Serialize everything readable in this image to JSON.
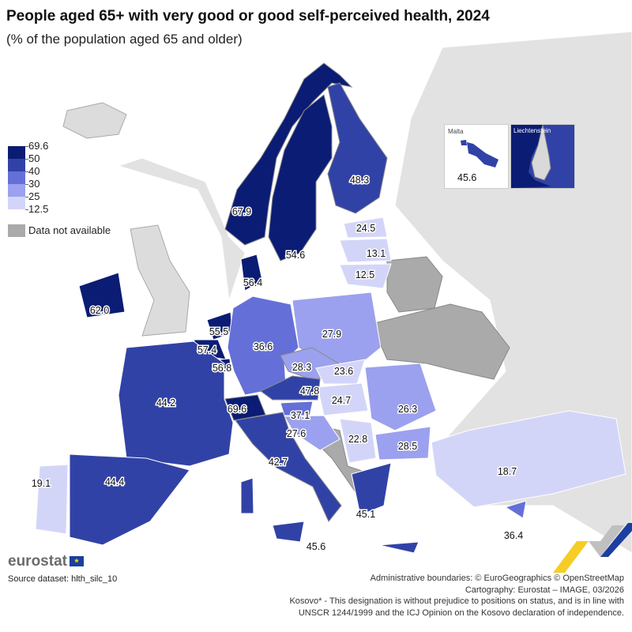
{
  "title": "People aged 65+ with very good or good self-perceived health, 2024",
  "subtitle": "(% of the population aged 65 and older)",
  "legend": {
    "breaks": [
      "69.6",
      "50",
      "40",
      "30",
      "25",
      "12.5"
    ],
    "colors": [
      "#0b1c74",
      "#3142a6",
      "#6470d8",
      "#9ba1ee",
      "#d3d5f8"
    ],
    "na_label": "Data not available",
    "na_color": "#aaaaaa"
  },
  "countries": [
    {
      "name": "Norway",
      "value": "67.9"
    },
    {
      "name": "Sweden",
      "value": "54.6"
    },
    {
      "name": "Finland",
      "value": "48.3"
    },
    {
      "name": "Estonia",
      "value": "24.5"
    },
    {
      "name": "Latvia",
      "value": "13.1"
    },
    {
      "name": "Lithuania",
      "value": "12.5"
    },
    {
      "name": "Denmark",
      "value": "56.4"
    },
    {
      "name": "Ireland",
      "value": "62.0"
    },
    {
      "name": "Netherlands",
      "value": "55.5"
    },
    {
      "name": "Belgium",
      "value": "57.4"
    },
    {
      "name": "Luxembourg",
      "value": "56.8"
    },
    {
      "name": "Germany",
      "value": "36.6"
    },
    {
      "name": "Poland",
      "value": "27.9"
    },
    {
      "name": "Czechia",
      "value": "28.3"
    },
    {
      "name": "Slovakia",
      "value": "23.6"
    },
    {
      "name": "Austria",
      "value": "47.8"
    },
    {
      "name": "Hungary",
      "value": "24.7"
    },
    {
      "name": "Romania",
      "value": "26.3"
    },
    {
      "name": "Bulgaria",
      "value": "28.5"
    },
    {
      "name": "Slovenia",
      "value": "37.1"
    },
    {
      "name": "Croatia",
      "value": "27.6"
    },
    {
      "name": "Serbia",
      "value": "22.8"
    },
    {
      "name": "Switzerland",
      "value": "69.6"
    },
    {
      "name": "France",
      "value": "44.2"
    },
    {
      "name": "Spain",
      "value": "44.4"
    },
    {
      "name": "Portugal",
      "value": "19.1"
    },
    {
      "name": "Italy",
      "value": "42.7"
    },
    {
      "name": "Greece",
      "value": "45.1"
    },
    {
      "name": "Cyprus",
      "value": "36.4"
    },
    {
      "name": "Turkey",
      "value": "18.7"
    },
    {
      "name": "Malta",
      "value": "45.6"
    }
  ],
  "insets": {
    "malta_label": "Malta",
    "malta_value": "45.6",
    "liechtenstein_label": "Liechtenstein"
  },
  "footer": {
    "logo": "eurostat",
    "source": "Source dataset: hlth_silc_10",
    "credits": [
      "Administrative boundaries: © EuroGeographics © OpenStreetMap",
      "Cartography: Eurostat – IMAGE, 03/2026",
      "Kosovo* - This designation is without prejudice to positions on status, and is in line with",
      "UNSCR 1244/1999 and the ICJ Opinion on the Kosovo declaration of independence."
    ]
  }
}
